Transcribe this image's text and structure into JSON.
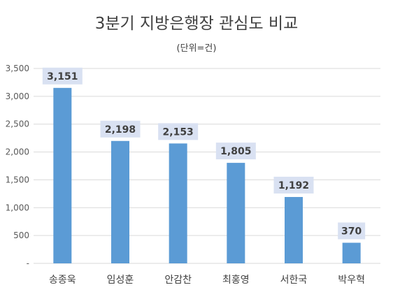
{
  "chart_data": {
    "type": "bar",
    "title": "3분기 지방은행장 관심도 비교",
    "subtitle": "(단위=건)",
    "categories": [
      "송종욱",
      "임성훈",
      "안감찬",
      "최홍영",
      "서한국",
      "박우혁"
    ],
    "values": [
      3151,
      2198,
      2153,
      1805,
      1192,
      370
    ],
    "value_labels": [
      "3,151",
      "2,198",
      "2,153",
      "1,805",
      "1,192",
      "370"
    ],
    "ylim": [
      0,
      3500
    ],
    "yticks": [
      0,
      500,
      1000,
      1500,
      2000,
      2500,
      3000,
      3500
    ],
    "ytick_labels": [
      "-",
      "500",
      "1,000",
      "1,500",
      "2,000",
      "2,500",
      "3,000",
      "3,500"
    ],
    "grid": true,
    "legend": "none",
    "xlabel": "",
    "ylabel": "",
    "colors": {
      "bar": "#5B9BD5",
      "label_box": "#D9E1F2",
      "grid": "#D9D9D9"
    }
  }
}
